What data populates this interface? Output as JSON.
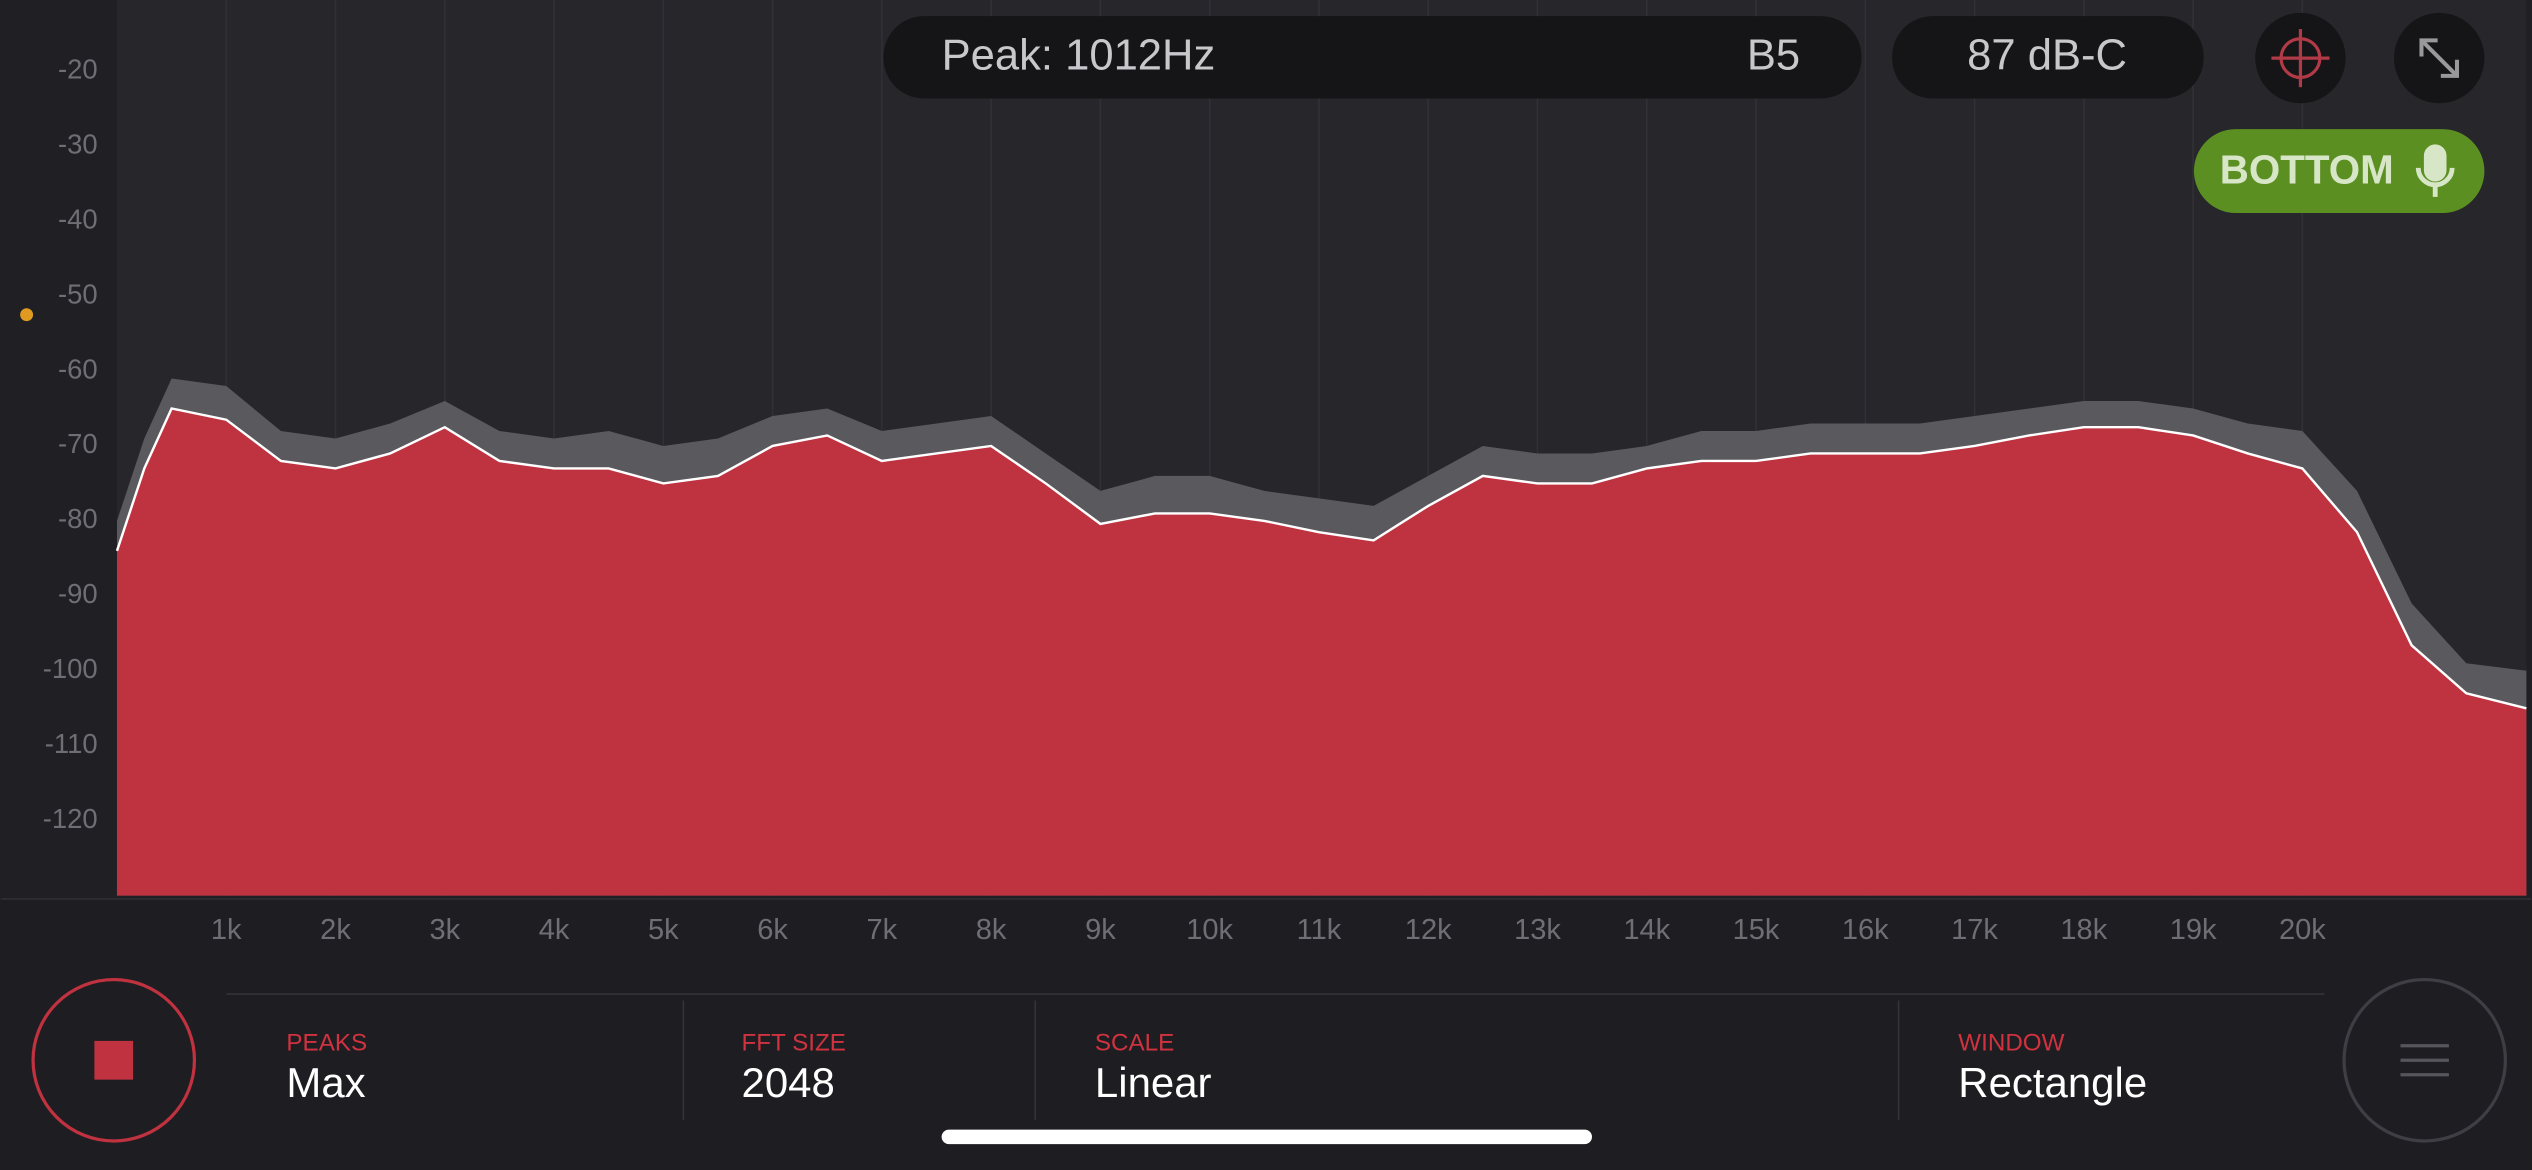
{
  "header": {
    "peak": "Peak: 1012Hz",
    "note": "B5",
    "level": "87 dB-C",
    "mic": "BOTTOM"
  },
  "chart_data": {
    "type": "area",
    "x": [
      0,
      250,
      500,
      1000,
      1500,
      2000,
      2500,
      3000,
      3500,
      4000,
      4500,
      5000,
      5500,
      6000,
      6500,
      7000,
      7500,
      8000,
      8500,
      9000,
      9500,
      10000,
      10500,
      11000,
      11500,
      12000,
      12500,
      13000,
      13500,
      14000,
      14500,
      15000,
      15500,
      16000,
      16500,
      17000,
      17500,
      18000,
      18500,
      19000,
      19500,
      20000,
      20500,
      21000,
      21500,
      22050
    ],
    "series": [
      {
        "color": "#5a5a5e",
        "values": [
          -80,
          -69,
          -61,
          -62,
          -68,
          -69,
          -67,
          -64,
          -68,
          -69,
          -68,
          -70,
          -69,
          -66,
          -65,
          -68,
          -67,
          -66,
          -71,
          -76,
          -74,
          -74,
          -76,
          -77,
          -78,
          -74,
          -70,
          -71,
          -71,
          -70,
          -68,
          -68,
          -67,
          -67,
          -67,
          -66,
          -65,
          -64,
          -64,
          -65,
          -67,
          -68,
          -76,
          -91,
          -99,
          -100
        ]
      },
      {
        "color": "#bf3340",
        "values": [
          -84,
          -73,
          -65,
          -66.5,
          -72,
          -73,
          -71,
          -67.5,
          -72,
          -73,
          -73,
          -75,
          -74,
          -70,
          -68.6,
          -72,
          -71,
          -70,
          -75,
          -80.4,
          -79,
          -79,
          -80,
          -81.5,
          -82.6,
          -78,
          -74,
          -75,
          -75,
          -73,
          -72,
          -72,
          -71,
          -71,
          -71,
          -70,
          -68.6,
          -67.5,
          -67.5,
          -68.6,
          -71,
          -73,
          -81.5,
          -96.6,
          -103,
          -105
        ]
      }
    ],
    "xlim": [
      0,
      22050
    ],
    "ylim": [
      -130,
      -10.5
    ],
    "xticks": [
      {
        "value": 1000,
        "label": "1k"
      },
      {
        "value": 2000,
        "label": "2k"
      },
      {
        "value": 3000,
        "label": "3k"
      },
      {
        "value": 4000,
        "label": "4k"
      },
      {
        "value": 5000,
        "label": "5k"
      },
      {
        "value": 6000,
        "label": "6k"
      },
      {
        "value": 7000,
        "label": "7k"
      },
      {
        "value": 8000,
        "label": "8k"
      },
      {
        "value": 9000,
        "label": "9k"
      },
      {
        "value": 10000,
        "label": "10k"
      },
      {
        "value": 11000,
        "label": "11k"
      },
      {
        "value": 12000,
        "label": "12k"
      },
      {
        "value": 13000,
        "label": "13k"
      },
      {
        "value": 14000,
        "label": "14k"
      },
      {
        "value": 15000,
        "label": "15k"
      },
      {
        "value": 16000,
        "label": "16k"
      },
      {
        "value": 17000,
        "label": "17k"
      },
      {
        "value": 18000,
        "label": "18k"
      },
      {
        "value": 19000,
        "label": "19k"
      },
      {
        "value": 20000,
        "label": "20k"
      }
    ],
    "yticks": [
      -20,
      -30,
      -40,
      -50,
      -60,
      -70,
      -80,
      -90,
      -100,
      -110,
      -120
    ],
    "grid": true
  },
  "settings": [
    {
      "label": "PEAKS",
      "value": "Max"
    },
    {
      "label": "FFT SIZE",
      "value": "2048"
    },
    {
      "label": "SCALE",
      "value": "Linear"
    },
    {
      "label": "WINDOW",
      "value": "Rectangle"
    }
  ]
}
